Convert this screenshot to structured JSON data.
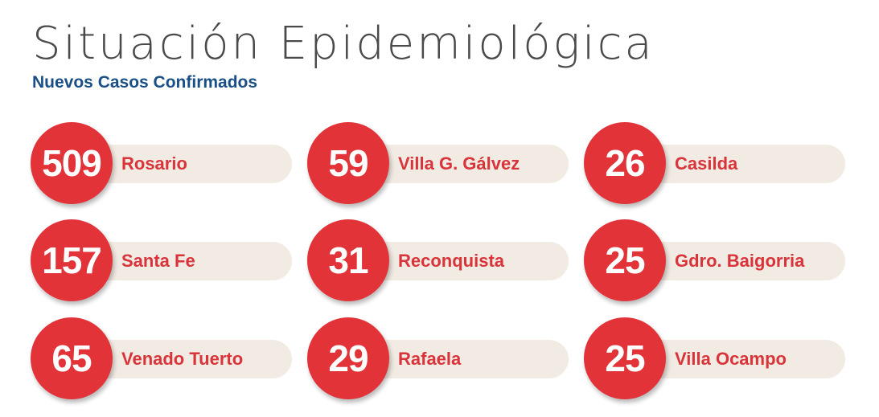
{
  "header": {
    "title": "Situación Epidemiológica",
    "subtitle": "Nuevos Casos Confirmados"
  },
  "colors": {
    "circle": "#e23339",
    "label": "#d8343a",
    "pill": "#f1ebe3",
    "subtitle": "#1a4f86",
    "title": "#4a4a4a"
  },
  "cases": [
    {
      "count": "509",
      "city": "Rosario"
    },
    {
      "count": "59",
      "city": "Villa G. Gálvez"
    },
    {
      "count": "26",
      "city": "Casilda"
    },
    {
      "count": "157",
      "city": "Santa Fe"
    },
    {
      "count": "31",
      "city": "Reconquista"
    },
    {
      "count": "25",
      "city": "Gdro. Baigorria"
    },
    {
      "count": "65",
      "city": "Venado Tuerto"
    },
    {
      "count": "29",
      "city": "Rafaela"
    },
    {
      "count": "25",
      "city": "Villa Ocampo"
    }
  ]
}
